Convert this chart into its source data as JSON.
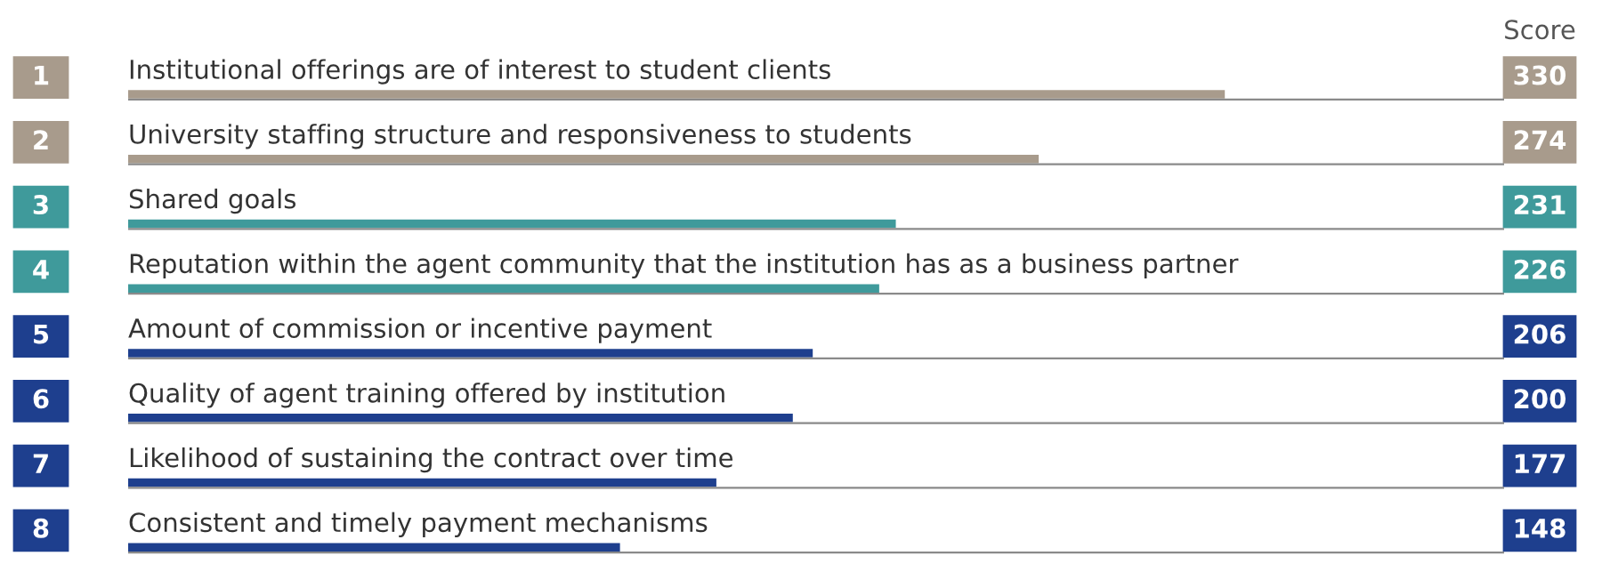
{
  "chart_data": {
    "type": "bar",
    "orientation": "horizontal",
    "categories": [
      "Institutional offerings are of interest to student clients",
      "University staffing structure and responsiveness to students",
      "Shared goals",
      "Reputation within the agent community that the institution has as a business partner",
      "Amount of commission or incentive payment",
      "Quality of agent training offered by institution",
      "Likelihood of sustaining the contract over time",
      "Consistent and timely payment mechanisms"
    ],
    "values": [
      330,
      274,
      231,
      226,
      206,
      200,
      177,
      148
    ],
    "colors": [
      "#a89b8c",
      "#a89b8c",
      "#3f9a9b",
      "#3f9a9b",
      "#1e3f8e",
      "#1e3f8e",
      "#1e3f8e",
      "#1e3f8e"
    ],
    "data_labels": true,
    "xlim": [
      0,
      436
    ],
    "annotations": [
      "Score",
      "1",
      "2",
      "3",
      "4",
      "5",
      "6",
      "7",
      "8"
    ]
  }
}
